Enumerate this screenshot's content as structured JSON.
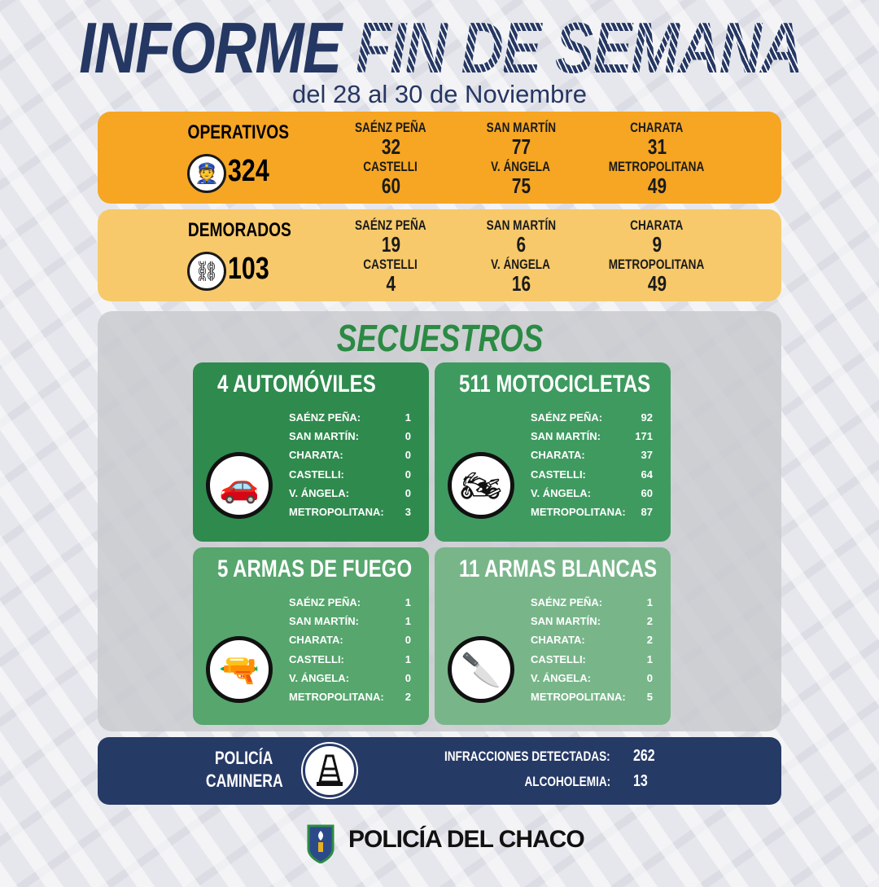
{
  "title": {
    "part1": "INFORME",
    "part2": "FIN DE SEMANA",
    "subtitle": "del 28 al 30 de Noviembre"
  },
  "operativos": {
    "label": "OPERATIVOS",
    "total": "324",
    "icon": "police-officer-icon",
    "color": "#F6A623",
    "items": [
      {
        "name": "SAÉNZ PEÑA",
        "value": "32"
      },
      {
        "name": "SAN MARTÍN",
        "value": "77"
      },
      {
        "name": "CHARATA",
        "value": "31"
      },
      {
        "name": "CASTELLI",
        "value": "60"
      },
      {
        "name": "V. ÁNGELA",
        "value": "75"
      },
      {
        "name": "METROPOLITANA",
        "value": "49"
      }
    ]
  },
  "demorados": {
    "label": "DEMORADOS",
    "total": "103",
    "icon": "handcuffs-icon",
    "color": "#F8C96A",
    "items": [
      {
        "name": "SAÉNZ PEÑA",
        "value": "19"
      },
      {
        "name": "SAN MARTÍN",
        "value": "6"
      },
      {
        "name": "CHARATA",
        "value": "9"
      },
      {
        "name": "CASTELLI",
        "value": "4"
      },
      {
        "name": "V. ÁNGELA",
        "value": "16"
      },
      {
        "name": "METROPOLITANA",
        "value": "49"
      }
    ]
  },
  "secuestros": {
    "title": "SECUESTROS",
    "cards": [
      {
        "title": "4 AUTOMÓVILES",
        "icon": "car-icon",
        "rows": [
          {
            "k": "SAÉNZ PEÑA:",
            "v": "1"
          },
          {
            "k": "SAN MARTÍN:",
            "v": "0"
          },
          {
            "k": "CHARATA:",
            "v": "0"
          },
          {
            "k": "CASTELLI:",
            "v": "0"
          },
          {
            "k": "V. ÁNGELA:",
            "v": "0"
          },
          {
            "k": "METROPOLITANA:",
            "v": "3"
          }
        ]
      },
      {
        "title": "511 MOTOCICLETAS",
        "icon": "motorcycle-icon",
        "rows": [
          {
            "k": "SAÉNZ PEÑA:",
            "v": "92"
          },
          {
            "k": "SAN MARTÍN:",
            "v": "171"
          },
          {
            "k": "CHARATA:",
            "v": "37"
          },
          {
            "k": "CASTELLI:",
            "v": "64"
          },
          {
            "k": "V. ÁNGELA:",
            "v": "60"
          },
          {
            "k": "METROPOLITANA:",
            "v": "87"
          }
        ]
      },
      {
        "title": "5 ARMAS DE FUEGO",
        "icon": "gun-icon",
        "rows": [
          {
            "k": "SAÉNZ PEÑA:",
            "v": "1"
          },
          {
            "k": "SAN MARTÍN:",
            "v": "1"
          },
          {
            "k": "CHARATA:",
            "v": "0"
          },
          {
            "k": "CASTELLI:",
            "v": "1"
          },
          {
            "k": "V. ÁNGELA:",
            "v": "0"
          },
          {
            "k": "METROPOLITANA:",
            "v": "2"
          }
        ]
      },
      {
        "title": "11 ARMAS BLANCAS",
        "icon": "knife-icon",
        "rows": [
          {
            "k": "SAÉNZ PEÑA:",
            "v": "1"
          },
          {
            "k": "SAN MARTÍN:",
            "v": "2"
          },
          {
            "k": "CHARATA:",
            "v": "2"
          },
          {
            "k": "CASTELLI:",
            "v": "1"
          },
          {
            "k": "V. ÁNGELA:",
            "v": "0"
          },
          {
            "k": "METROPOLITANA:",
            "v": "5"
          }
        ]
      }
    ]
  },
  "caminera": {
    "line1": "POLICÍA",
    "line2": "CAMINERA",
    "icon": "traffic-cone-icon",
    "infracciones_label": "INFRACCIONES DETECTADAS:",
    "infracciones": "262",
    "alcoholemia_label": "ALCOHOLEMIA:",
    "alcoholemia": "13"
  },
  "footer": {
    "brand": "POLICÍA DEL CHACO"
  }
}
